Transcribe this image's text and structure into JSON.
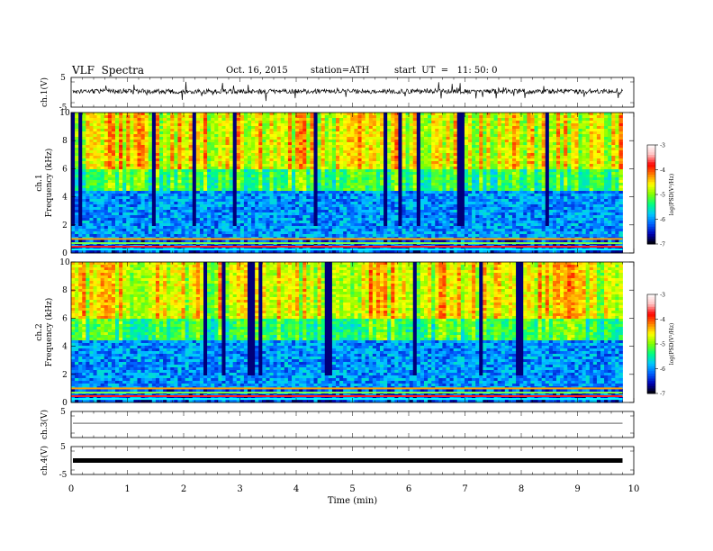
{
  "header": {
    "title": "VLF  Spectra",
    "date": "Oct. 16, 2015",
    "station": "station=ATH",
    "start": "start  UT  =   11: 50: 0"
  },
  "chart_data": {
    "type": "heatmap",
    "xlabel": "Time  (min)",
    "xlim": [
      0,
      10
    ],
    "xticks": [
      "0",
      "1",
      "2",
      "3",
      "4",
      "5",
      "6",
      "7",
      "8",
      "9",
      "10"
    ],
    "data_end_min": 9.8,
    "panels": [
      {
        "name": "ch1-waveform",
        "kind": "waveform",
        "ylabel": "ch.1(V)",
        "ylim": [
          -5,
          5
        ],
        "yticks": [
          "5",
          "-5"
        ]
      },
      {
        "name": "ch1-spectrogram",
        "kind": "spectrogram",
        "ylabel": "ch.1\nFrequency  (kHz)",
        "ylim": [
          0,
          10
        ],
        "yticks": [
          "0",
          "2",
          "4",
          "6",
          "8",
          "10"
        ],
        "colorbar": {
          "label": "log(PSD(V²/Hz)",
          "range": [
            -7,
            -3
          ],
          "ticks": [
            "-3",
            "-4",
            "-5",
            "-6",
            "-7"
          ]
        }
      },
      {
        "name": "ch2-spectrogram",
        "kind": "spectrogram",
        "ylabel": "ch.2\nFrequency  (kHz)",
        "ylim": [
          0,
          10
        ],
        "yticks": [
          "0",
          "2",
          "4",
          "6",
          "8",
          "10"
        ],
        "colorbar": {
          "label": "log(PSD(V²/Hz)",
          "range": [
            -7,
            -3
          ],
          "ticks": [
            "-3",
            "-4",
            "-5",
            "-6",
            "-7"
          ]
        }
      },
      {
        "name": "ch3-waveform",
        "kind": "waveform",
        "ylabel": "ch.3(V)",
        "ylim": [
          -5,
          5
        ],
        "yticks": [
          "5"
        ]
      },
      {
        "name": "ch4-waveform",
        "kind": "waveform",
        "ylabel": "ch.4(V)",
        "ylim": [
          -5,
          5
        ],
        "yticks": [
          "5",
          "-5"
        ]
      }
    ]
  },
  "colors": {
    "scale": [
      "#000000",
      "#0000b4",
      "#0060ff",
      "#00c8ff",
      "#00ff80",
      "#80ff00",
      "#ffff00",
      "#ff8000",
      "#ff0000",
      "#ffc0c0",
      "#ffffff"
    ]
  }
}
